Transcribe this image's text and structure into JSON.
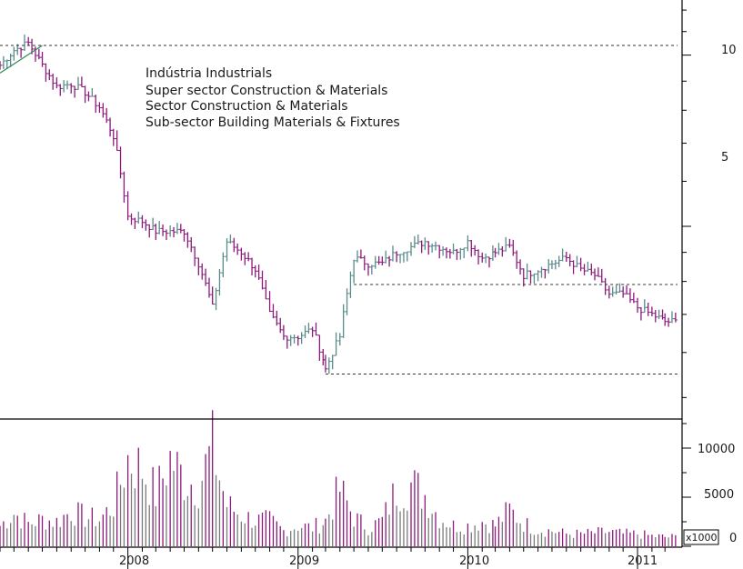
{
  "annotation": {
    "line1": "Indústria Industrials",
    "line2": "Super sector Construction & Materials",
    "line3": "Sector Construction & Materials",
    "line4": "Sub-sector Building Materials & Fixtures"
  },
  "axis": {
    "price_ticks": [
      "10",
      "5"
    ],
    "volume_ticks": [
      "10000",
      "5000",
      "0"
    ],
    "volume_unit": "x1000",
    "years": [
      "2008",
      "2009",
      "2010",
      "2011"
    ]
  },
  "colors": {
    "bar_up": "#5a8a8a",
    "bar_down": "#8b1a7a",
    "volume_bar": "#7a7a7a",
    "trendline": "#2e8b57",
    "reference_line": "#333333",
    "axis": "#000000"
  },
  "chart_data": [
    {
      "type": "line",
      "chart_style": "ohlc",
      "y_scale": "log",
      "ylim": [
        2.3,
        12.5
      ],
      "x_range": [
        "2007-04",
        "2011-03"
      ],
      "reference_levels": [
        10.4,
        3.95,
        2.75
      ],
      "series": [
        {
          "values_by_month": [
            [
              "2007-04",
              9.6
            ],
            [
              "2007-05",
              10.2
            ],
            [
              "2007-06",
              10.5
            ],
            [
              "2007-07",
              9.6
            ],
            [
              "2007-08",
              8.8
            ],
            [
              "2007-09",
              8.9
            ],
            [
              "2007-10",
              8.6
            ],
            [
              "2007-11",
              8.1
            ],
            [
              "2007-12",
              7.2
            ],
            [
              "2008-01",
              5.2
            ],
            [
              "2008-02",
              5.1
            ],
            [
              "2008-03",
              4.9
            ],
            [
              "2008-04",
              4.9
            ],
            [
              "2008-05",
              4.9
            ],
            [
              "2008-06",
              4.3
            ],
            [
              "2008-07",
              3.6
            ],
            [
              "2008-08",
              4.7
            ],
            [
              "2008-09",
              4.5
            ],
            [
              "2008-10",
              4.2
            ],
            [
              "2008-11",
              3.5
            ],
            [
              "2008-12",
              3.2
            ],
            [
              "2009-01",
              3.2
            ],
            [
              "2009-02",
              3.3
            ],
            [
              "2009-03",
              2.8
            ],
            [
              "2009-04",
              3.2
            ],
            [
              "2009-05",
              4.4
            ],
            [
              "2009-06",
              4.3
            ],
            [
              "2009-07",
              4.3
            ],
            [
              "2009-08",
              4.5
            ],
            [
              "2009-09",
              4.6
            ],
            [
              "2009-10",
              4.7
            ],
            [
              "2009-11",
              4.6
            ],
            [
              "2009-12",
              4.5
            ],
            [
              "2010-01",
              4.7
            ],
            [
              "2010-02",
              4.4
            ],
            [
              "2010-03",
              4.5
            ],
            [
              "2010-04",
              4.6
            ],
            [
              "2010-05",
              4.1
            ],
            [
              "2010-06",
              4.2
            ],
            [
              "2010-07",
              4.3
            ],
            [
              "2010-08",
              4.4
            ],
            [
              "2010-09",
              4.2
            ],
            [
              "2010-10",
              4.1
            ],
            [
              "2010-11",
              3.8
            ],
            [
              "2010-12",
              3.8
            ],
            [
              "2011-01",
              3.6
            ],
            [
              "2011-02",
              3.5
            ],
            [
              "2011-03",
              3.4
            ]
          ]
        }
      ]
    },
    {
      "type": "bar",
      "ylim": [
        0,
        12500
      ],
      "unit": "x1000",
      "series": [
        {
          "values_by_month": [
            [
              "2007-04",
              2000
            ],
            [
              "2007-05",
              3200
            ],
            [
              "2007-06",
              2200
            ],
            [
              "2007-07",
              2600
            ],
            [
              "2007-08",
              2400
            ],
            [
              "2007-09",
              3400
            ],
            [
              "2007-10",
              2800
            ],
            [
              "2007-11",
              2600
            ],
            [
              "2007-12",
              4000
            ],
            [
              "2008-01",
              8500
            ],
            [
              "2008-02",
              7500
            ],
            [
              "2008-03",
              5000
            ],
            [
              "2008-04",
              8500
            ],
            [
              "2008-05",
              6500
            ],
            [
              "2008-06",
              6000
            ],
            [
              "2008-07",
              9500
            ],
            [
              "2008-08",
              4000
            ],
            [
              "2008-09",
              3000
            ],
            [
              "2008-10",
              2500
            ],
            [
              "2008-11",
              2500
            ],
            [
              "2008-12",
              1500
            ],
            [
              "2009-01",
              2000
            ],
            [
              "2009-02",
              1800
            ],
            [
              "2009-03",
              2500
            ],
            [
              "2009-04",
              5500
            ],
            [
              "2009-05",
              2800
            ],
            [
              "2009-06",
              1800
            ],
            [
              "2009-07",
              2500
            ],
            [
              "2009-08",
              5500
            ],
            [
              "2009-09",
              6000
            ],
            [
              "2009-10",
              5000
            ],
            [
              "2009-11",
              2800
            ],
            [
              "2009-12",
              2000
            ],
            [
              "2010-01",
              2000
            ],
            [
              "2010-02",
              2400
            ],
            [
              "2010-03",
              2000
            ],
            [
              "2010-04",
              3500
            ],
            [
              "2010-05",
              2200
            ],
            [
              "2010-06",
              1600
            ],
            [
              "2010-07",
              1500
            ],
            [
              "2010-08",
              1200
            ],
            [
              "2010-09",
              1200
            ],
            [
              "2010-10",
              1300
            ],
            [
              "2010-11",
              1400
            ],
            [
              "2010-12",
              1200
            ],
            [
              "2011-01",
              1200
            ],
            [
              "2011-02",
              1000
            ],
            [
              "2011-03",
              900
            ]
          ]
        }
      ]
    }
  ]
}
